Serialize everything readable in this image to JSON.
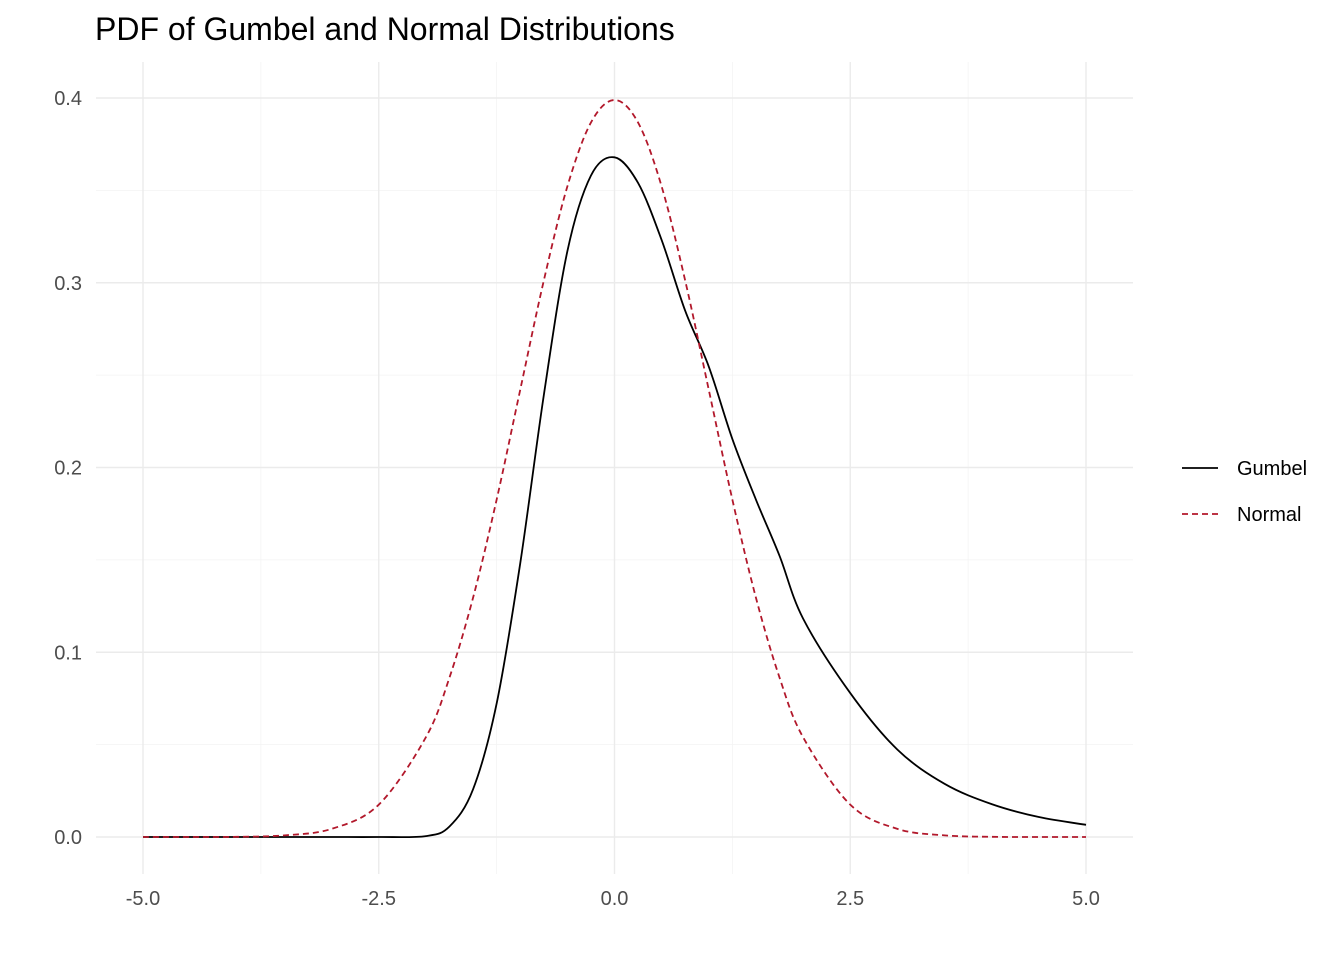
{
  "chart_data": {
    "type": "line",
    "title": "PDF of Gumbel and Normal Distributions",
    "xlabel": "",
    "ylabel": "",
    "xlim": [
      -5,
      5
    ],
    "ylim": [
      0,
      0.4
    ],
    "x_ticks": [
      -5.0,
      -2.5,
      0.0,
      2.5,
      5.0
    ],
    "x_tick_labels": [
      "-5.0",
      "-2.5",
      "0.0",
      "2.5",
      "5.0"
    ],
    "y_ticks": [
      0.0,
      0.1,
      0.2,
      0.3,
      0.4
    ],
    "y_tick_labels": [
      "0.0",
      "0.1",
      "0.2",
      "0.3",
      "0.4"
    ],
    "grid": true,
    "legend_position": "right",
    "x": [
      -5,
      -4.5,
      -4,
      -3.5,
      -3,
      -2.5,
      -2,
      -1.75,
      -1.5,
      -1.25,
      -1,
      -0.75,
      -0.5,
      -0.25,
      0,
      0.25,
      0.5,
      0.75,
      1,
      1.25,
      1.5,
      1.75,
      2,
      2.5,
      3,
      3.5,
      4,
      4.5,
      5
    ],
    "series": [
      {
        "name": "Gumbel",
        "color": "#000000",
        "dash": "solid",
        "values": [
          0.0,
          0.0,
          0.0,
          0.0,
          0.0,
          0.0,
          0.0005,
          0.0057,
          0.0258,
          0.0722,
          0.148,
          0.239,
          0.317,
          0.358,
          0.3679,
          0.354,
          0.3231,
          0.2848,
          0.2546,
          0.2154,
          0.1826,
          0.1522,
          0.1182,
          0.0779,
          0.0473,
          0.0288,
          0.0178,
          0.0108,
          0.0066
        ]
      },
      {
        "name": "Normal",
        "color": "#b2182b",
        "dash": "dashed",
        "values": [
          0.0,
          0.0,
          0.0001,
          0.0009,
          0.0044,
          0.0175,
          0.054,
          0.0863,
          0.1295,
          0.1826,
          0.242,
          0.3011,
          0.3521,
          0.3867,
          0.3989,
          0.3867,
          0.3521,
          0.3011,
          0.242,
          0.1826,
          0.1295,
          0.0863,
          0.054,
          0.0175,
          0.0044,
          0.0009,
          0.0001,
          0.0,
          0.0
        ]
      }
    ]
  }
}
